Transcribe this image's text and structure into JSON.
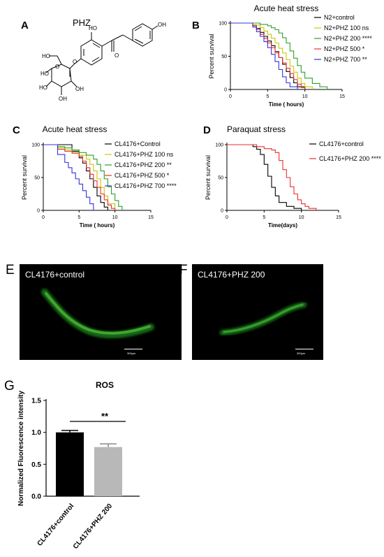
{
  "panels": {
    "A": {
      "label": "A",
      "compound": "PHZ"
    },
    "B": {
      "label": "B"
    },
    "C": {
      "label": "C"
    },
    "D": {
      "label": "D"
    },
    "E": {
      "label": "E",
      "caption": "CL4176+control",
      "scale": "300μm"
    },
    "F": {
      "label": "F",
      "caption": "CL4176+PHZ 200",
      "scale": "300μm"
    },
    "G": {
      "label": "G"
    }
  },
  "chart_data": [
    {
      "id": "B",
      "type": "line",
      "subtype": "survival-step",
      "title": "Acute heat stress",
      "xlabel": "Time ( hours)",
      "ylabel": "Percent survival",
      "xlim": [
        0,
        15
      ],
      "ylim": [
        0,
        100
      ],
      "xticks": [
        0,
        5,
        10,
        15
      ],
      "yticks": [
        0,
        50,
        100
      ],
      "legend": "right",
      "series": [
        {
          "name": "N2+control",
          "color": "#000000",
          "x": [
            0,
            2,
            3,
            3.5,
            4,
            4.5,
            5,
            5.5,
            6,
            6.5,
            7,
            7.5,
            8,
            8.5,
            9,
            10
          ],
          "y": [
            100,
            100,
            97,
            92,
            86,
            80,
            73,
            66,
            57,
            48,
            38,
            27,
            18,
            10,
            4,
            0
          ]
        },
        {
          "name": "N2+PHZ 100 ns",
          "color": "#c8c800",
          "x": [
            0,
            2,
            3,
            4,
            4.5,
            5,
            5.5,
            6,
            6.5,
            7,
            7.5,
            8,
            8.5,
            9,
            9.5,
            10,
            11
          ],
          "y": [
            100,
            100,
            97,
            93,
            88,
            83,
            77,
            70,
            62,
            55,
            45,
            35,
            26,
            17,
            9,
            4,
            0
          ]
        },
        {
          "name": "N2+PHZ 200 ****",
          "color": "#2ca02c",
          "x": [
            0,
            3,
            4,
            5,
            5.5,
            6,
            6.5,
            7,
            7.5,
            8,
            8.5,
            9,
            9.5,
            10,
            11,
            12,
            13
          ],
          "y": [
            100,
            100,
            98,
            96,
            93,
            90,
            85,
            78,
            70,
            58,
            47,
            36,
            26,
            17,
            9,
            4,
            0
          ]
        },
        {
          "name": "N2+PHZ 500 *",
          "color": "#e8312f",
          "x": [
            0,
            2,
            3,
            3.5,
            4,
            4.5,
            5,
            5.5,
            6,
            6.5,
            7,
            7.5,
            8,
            8.5,
            9,
            9.5,
            10
          ],
          "y": [
            100,
            100,
            96,
            90,
            83,
            77,
            70,
            63,
            55,
            48,
            40,
            32,
            24,
            15,
            8,
            3,
            0
          ]
        },
        {
          "name": "N2+PHZ 700 **",
          "color": "#3333dd",
          "x": [
            0,
            2,
            3,
            3.5,
            4,
            4.5,
            5,
            5.5,
            6,
            6.5,
            7,
            7.5,
            8,
            9
          ],
          "y": [
            100,
            100,
            94,
            87,
            80,
            72,
            63,
            53,
            42,
            30,
            19,
            10,
            4,
            0
          ]
        }
      ]
    },
    {
      "id": "C",
      "type": "line",
      "subtype": "survival-step",
      "title": "Acute heat stress",
      "xlabel": "Time ( hours)",
      "ylabel": "Percent survival",
      "xlim": [
        0,
        15
      ],
      "ylim": [
        0,
        100
      ],
      "xticks": [
        0,
        5,
        10,
        15
      ],
      "yticks": [
        0,
        50,
        100
      ],
      "legend": "right",
      "series": [
        {
          "name": "CL4176+Control",
          "color": "#000000",
          "x": [
            0,
            3,
            4,
            5,
            5.5,
            6,
            6.5,
            7,
            7.5,
            8,
            8.5,
            9
          ],
          "y": [
            100,
            100,
            90,
            80,
            72,
            60,
            48,
            35,
            22,
            12,
            5,
            0
          ]
        },
        {
          "name": "CL4176+PHZ 100 ns",
          "color": "#c8c800",
          "x": [
            0,
            2,
            3,
            4,
            5,
            6,
            6.5,
            7,
            7.5,
            8,
            8.5,
            9,
            10
          ],
          "y": [
            100,
            95,
            92,
            88,
            84,
            78,
            70,
            60,
            48,
            35,
            22,
            10,
            0
          ]
        },
        {
          "name": "CL4176+PHZ 200 **",
          "color": "#2ca02c",
          "x": [
            0,
            2,
            3,
            4,
            5,
            6,
            7,
            7.5,
            8,
            8.5,
            9,
            9.5,
            10,
            10.5,
            11
          ],
          "y": [
            100,
            97,
            95,
            92,
            88,
            84,
            78,
            70,
            60,
            48,
            36,
            25,
            15,
            6,
            0
          ]
        },
        {
          "name": "CL4176+PHZ 500 *",
          "color": "#e8312f",
          "x": [
            0,
            2,
            3,
            4,
            5,
            5.5,
            6,
            6.5,
            7,
            7.5,
            8,
            8.5,
            9,
            9.5,
            10
          ],
          "y": [
            100,
            93,
            90,
            87,
            82,
            75,
            65,
            55,
            45,
            35,
            25,
            16,
            8,
            3,
            0
          ]
        },
        {
          "name": "CL4176+PHZ 700 ****",
          "color": "#3333dd",
          "x": [
            0,
            2,
            3,
            3.5,
            4,
            4.5,
            5,
            5.5,
            6,
            6.5,
            7
          ],
          "y": [
            100,
            85,
            73,
            65,
            57,
            48,
            40,
            30,
            20,
            10,
            0
          ]
        }
      ]
    },
    {
      "id": "D",
      "type": "line",
      "subtype": "survival-step",
      "title": "Paraquat stress",
      "xlabel": "Time(days)",
      "ylabel": "Percent survival",
      "xlim": [
        0,
        15
      ],
      "ylim": [
        0,
        100
      ],
      "xticks": [
        0,
        5,
        10,
        15
      ],
      "yticks": [
        0,
        50,
        100
      ],
      "legend": "right",
      "series": [
        {
          "name": "CL4176+control",
          "color": "#000000",
          "x": [
            0,
            3,
            3.5,
            4,
            4.5,
            5,
            5.5,
            6,
            6.5,
            7,
            8,
            9,
            10
          ],
          "y": [
            100,
            100,
            97,
            93,
            85,
            70,
            52,
            35,
            22,
            12,
            6,
            3,
            0
          ]
        },
        {
          "name": "CL4176+PHZ 200 ****",
          "color": "#e8312f",
          "x": [
            0,
            3,
            4,
            5,
            6,
            6.5,
            7,
            7.5,
            8,
            8.5,
            9,
            9.5,
            10,
            10.5,
            11,
            12
          ],
          "y": [
            100,
            100,
            97,
            94,
            92,
            88,
            76,
            62,
            50,
            36,
            25,
            16,
            10,
            6,
            3,
            0
          ]
        }
      ]
    },
    {
      "id": "G",
      "type": "bar",
      "title": "ROS",
      "ylabel": "Normalized Fluorescence intensity",
      "ylim": [
        0,
        1.5
      ],
      "yticks": [
        0.0,
        0.5,
        1.0,
        1.5
      ],
      "categories": [
        "CL4176+control",
        "CL4176+PHZ 200"
      ],
      "values": [
        1.0,
        0.77
      ],
      "errors": [
        0.03,
        0.05
      ],
      "colors": [
        "#000000",
        "#b8b8b8"
      ],
      "significance": "**"
    }
  ]
}
